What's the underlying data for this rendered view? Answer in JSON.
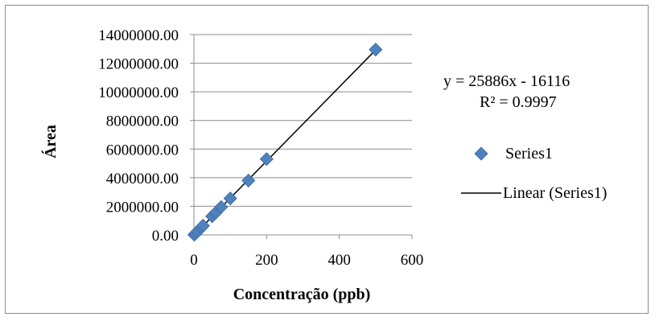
{
  "chart_data": {
    "type": "scatter",
    "title": "",
    "xlabel": "Concentração (ppb)",
    "ylabel": "Área",
    "xlim": [
      0,
      600
    ],
    "ylim": [
      0,
      14000000
    ],
    "x_ticks": [
      "0",
      "200",
      "400",
      "600"
    ],
    "y_ticks": [
      "0.00",
      "2000000.00",
      "4000000.00",
      "6000000.00",
      "8000000.00",
      "10000000.00",
      "12000000.00",
      "14000000.00"
    ],
    "grid": "horizontal",
    "legend_position": "right",
    "series": [
      {
        "name": "Series1",
        "marker": "diamond",
        "color": "#4f81bd",
        "x": [
          1,
          5,
          10,
          20,
          25,
          50,
          60,
          75,
          100,
          150,
          200,
          500
        ],
        "y": [
          10000,
          120000,
          240000,
          500000,
          650000,
          1300000,
          1550000,
          1950000,
          2550000,
          3800000,
          5300000,
          12950000
        ]
      },
      {
        "name": "Linear (Series1)",
        "type": "trendline",
        "color": "#000000",
        "slope": 25886,
        "intercept": -16116
      }
    ],
    "trendline_equation": "y = 25886x - 16116",
    "r_squared": "R² = 0.9997"
  }
}
